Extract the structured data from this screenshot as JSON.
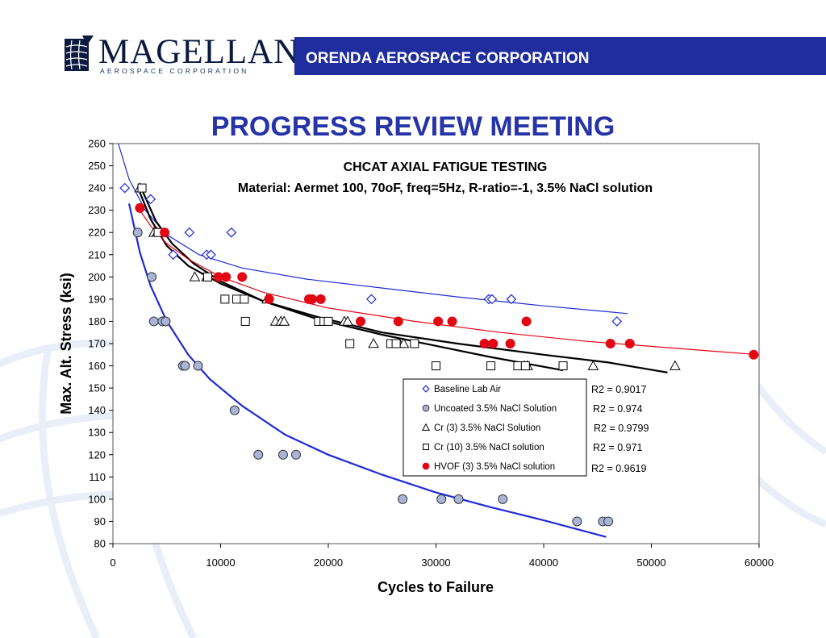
{
  "header": {
    "company_banner": "ORENDA AEROSPACE CORPORATION"
  },
  "logo": {
    "wordmark": "MAGELLAN",
    "tagline": "AEROSPACE CORPORATION"
  },
  "slide_title": "PROGRESS REVIEW MEETING",
  "colors": {
    "header_bar": "#1f2d9e",
    "title": "#2734a8",
    "baseline": "#1e2bd8",
    "uncoated_fill": "#aab3d8",
    "uncoated_line": "#1e2bd8",
    "hvof": "#e30613",
    "trend_black": "#000000",
    "hvof_trend": "#e30613"
  },
  "chart_data": {
    "type": "scatter",
    "title": "CHCAT AXIAL FATIGUE TESTING",
    "subtitle": "Material: Aermet 100, 70oF, freq=5Hz, R-ratio=-1, 3.5% NaCl solution",
    "xlabel": "Cycles to Failure",
    "ylabel": "Max. Alt. Stress (ksi)",
    "xlim": [
      0,
      60000
    ],
    "ylim": [
      80,
      260
    ],
    "x_ticks": [
      "0",
      "10000",
      "20000",
      "30000",
      "40000",
      "50000",
      "60000"
    ],
    "y_ticks": [
      "80",
      "90",
      "100",
      "110",
      "120",
      "130",
      "140",
      "150",
      "160",
      "170",
      "180",
      "190",
      "200",
      "210",
      "220",
      "230",
      "240",
      "250",
      "260"
    ],
    "grid": false,
    "legend_position": "center-right",
    "series": [
      {
        "name": "Baseline Lab Air",
        "marker": "diamond",
        "r2": "R2 = 0.9017",
        "points": [
          [
            1100,
            240
          ],
          [
            3500,
            235
          ],
          [
            5600,
            210
          ],
          [
            7100,
            220
          ],
          [
            8700,
            210
          ],
          [
            9100,
            210
          ],
          [
            11000,
            220
          ],
          [
            24000,
            190
          ],
          [
            34900,
            190
          ],
          [
            35200,
            190
          ],
          [
            37000,
            190
          ],
          [
            46800,
            180
          ]
        ],
        "trend": [
          [
            500,
            260
          ],
          [
            1500,
            244
          ],
          [
            3000,
            230
          ],
          [
            5000,
            219
          ],
          [
            8000,
            210
          ],
          [
            12000,
            204
          ],
          [
            18000,
            199
          ],
          [
            25000,
            195
          ],
          [
            32000,
            191
          ],
          [
            40000,
            187
          ],
          [
            47800,
            183.5
          ]
        ]
      },
      {
        "name": "Uncoated 3.5% NaCl Solution",
        "marker": "circle",
        "r2": "R2 = 0.974",
        "points": [
          [
            2300,
            220
          ],
          [
            3600,
            200
          ],
          [
            3800,
            180
          ],
          [
            4600,
            180
          ],
          [
            4900,
            180
          ],
          [
            6500,
            160
          ],
          [
            6700,
            160
          ],
          [
            7900,
            160
          ],
          [
            11300,
            140
          ],
          [
            13500,
            120
          ],
          [
            15800,
            120
          ],
          [
            17000,
            120
          ],
          [
            26900,
            100
          ],
          [
            30500,
            100
          ],
          [
            32100,
            100
          ],
          [
            36200,
            100
          ],
          [
            43100,
            90
          ],
          [
            45500,
            90
          ],
          [
            46000,
            90
          ]
        ],
        "trend": [
          [
            1500,
            233
          ],
          [
            2500,
            211
          ],
          [
            3500,
            196
          ],
          [
            5000,
            180
          ],
          [
            7000,
            165
          ],
          [
            9000,
            154
          ],
          [
            12000,
            142
          ],
          [
            16000,
            129
          ],
          [
            20000,
            120
          ],
          [
            25000,
            111
          ],
          [
            30000,
            103
          ],
          [
            35000,
            96.5
          ],
          [
            40000,
            90.5
          ],
          [
            45800,
            83
          ]
        ]
      },
      {
        "name": "Cr (3) 3.5% NaCl Solution",
        "marker": "triangle",
        "r2": "R2 = 0.9799",
        "points": [
          [
            2500,
            240
          ],
          [
            3800,
            220
          ],
          [
            4100,
            220
          ],
          [
            7600,
            200
          ],
          [
            8700,
            200
          ],
          [
            14300,
            190
          ],
          [
            15100,
            180
          ],
          [
            15600,
            180
          ],
          [
            15900,
            180
          ],
          [
            21500,
            180
          ],
          [
            21800,
            180
          ],
          [
            24200,
            170
          ],
          [
            26600,
            170
          ],
          [
            27000,
            170
          ],
          [
            38200,
            160
          ],
          [
            38500,
            160
          ],
          [
            44600,
            160
          ],
          [
            52200,
            160
          ]
        ],
        "trend": [
          [
            2500,
            238
          ],
          [
            3500,
            226
          ],
          [
            5000,
            214
          ],
          [
            7000,
            205
          ],
          [
            10000,
            197
          ],
          [
            14000,
            189
          ],
          [
            19000,
            182
          ],
          [
            25000,
            175
          ],
          [
            32000,
            170
          ],
          [
            40000,
            165
          ],
          [
            46000,
            161.5
          ],
          [
            51500,
            157
          ]
        ]
      },
      {
        "name": "Cr (10) 3.5% NaCl solution",
        "marker": "square",
        "r2": "R2 = 0.971",
        "points": [
          [
            2700,
            240
          ],
          [
            4200,
            220
          ],
          [
            8800,
            200
          ],
          [
            10400,
            190
          ],
          [
            11500,
            190
          ],
          [
            12200,
            190
          ],
          [
            12300,
            180
          ],
          [
            19100,
            180
          ],
          [
            19600,
            180
          ],
          [
            20000,
            180
          ],
          [
            22000,
            170
          ],
          [
            25800,
            170
          ],
          [
            26300,
            170
          ],
          [
            28000,
            170
          ],
          [
            30000,
            160
          ],
          [
            35100,
            160
          ],
          [
            37600,
            160
          ],
          [
            38300,
            160
          ],
          [
            41800,
            160
          ]
        ],
        "trend": [
          [
            2800,
            238
          ],
          [
            4000,
            225
          ],
          [
            5500,
            215
          ],
          [
            7500,
            206
          ],
          [
            10000,
            198
          ],
          [
            14000,
            189
          ],
          [
            19000,
            181
          ],
          [
            25000,
            174
          ],
          [
            30000,
            169
          ],
          [
            35000,
            164
          ],
          [
            41800,
            158
          ]
        ]
      },
      {
        "name": "HVOF (3) 3.5% NaCl solution",
        "marker": "filled-circle",
        "r2": "R2 = 0.9619",
        "points": [
          [
            2500,
            231
          ],
          [
            4800,
            220
          ],
          [
            9800,
            200
          ],
          [
            10500,
            200
          ],
          [
            12000,
            200
          ],
          [
            14500,
            190
          ],
          [
            18200,
            190
          ],
          [
            18500,
            190
          ],
          [
            19300,
            190
          ],
          [
            23000,
            180
          ],
          [
            26500,
            180
          ],
          [
            30200,
            180
          ],
          [
            31500,
            180
          ],
          [
            34500,
            170
          ],
          [
            35300,
            170
          ],
          [
            36900,
            170
          ],
          [
            38400,
            180
          ],
          [
            46200,
            170
          ],
          [
            48000,
            170
          ],
          [
            59500,
            165
          ]
        ],
        "trend": [
          [
            2500,
            230
          ],
          [
            3500,
            223
          ],
          [
            5000,
            215
          ],
          [
            7000,
            208
          ],
          [
            10000,
            200
          ],
          [
            14000,
            193
          ],
          [
            20000,
            186
          ],
          [
            28000,
            180
          ],
          [
            36000,
            175
          ],
          [
            44000,
            171
          ],
          [
            52000,
            168
          ],
          [
            60000,
            165
          ]
        ]
      }
    ]
  }
}
